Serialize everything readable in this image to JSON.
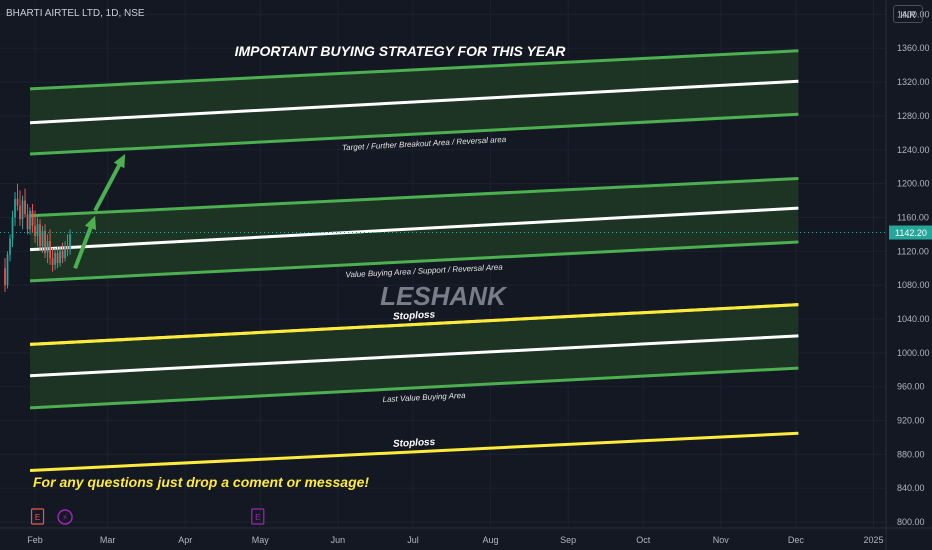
{
  "header": {
    "symbol": "BHARTI AIRTEL LTD, 1D, NSE",
    "currency": "INR"
  },
  "colors": {
    "background": "#141823",
    "band_fill": "#1f3a25",
    "green_line": "#4caf50",
    "white_line": "#ffffff",
    "yellow_line": "#ffeb3b",
    "candle_up": "#26a69a",
    "candle_down": "#ef5350",
    "price_tag": "#26a69a"
  },
  "chart_data": {
    "type": "candlestick",
    "title": "IMPORTANT BUYING STRATEGY FOR THIS YEAR",
    "watermark": "LESHANK",
    "footer_note": "For any questions just drop a coment or message!",
    "y_axis": {
      "ticks": [
        1400,
        1360,
        1320,
        1280,
        1240,
        1200,
        1160,
        1120,
        1080,
        1040,
        1000,
        960,
        920,
        880,
        840,
        800
      ],
      "labels": [
        "1400.00",
        "1360.00",
        "1320.00",
        "1280.00",
        "1240.00",
        "1200.00",
        "1160.00",
        "1120.00",
        "1080.00",
        "1040.00",
        "1000.00",
        "960.00",
        "920.00",
        "880.00",
        "840.00",
        "800.00"
      ],
      "range": [
        793,
        1417
      ]
    },
    "x_axis": {
      "labels": [
        "Feb",
        "Mar",
        "Apr",
        "May",
        "Jun",
        "Jul",
        "Aug",
        "Sep",
        "Oct",
        "Nov",
        "Dec",
        "2025"
      ],
      "day_positions": [
        0,
        29,
        60,
        90,
        121,
        151,
        182,
        213,
        243,
        274,
        304,
        335
      ],
      "range_days": [
        -14,
        340
      ]
    },
    "current_price": 1142.2,
    "current_price_label": "1142.20",
    "candles": [
      {
        "d": -12,
        "o": 1100,
        "h": 1112,
        "l": 1072,
        "c": 1080
      },
      {
        "d": -11,
        "o": 1080,
        "h": 1120,
        "l": 1076,
        "c": 1116
      },
      {
        "d": -10,
        "o": 1116,
        "h": 1140,
        "l": 1108,
        "c": 1135
      },
      {
        "d": -9,
        "o": 1135,
        "h": 1168,
        "l": 1125,
        "c": 1160
      },
      {
        "d": -8,
        "o": 1160,
        "h": 1190,
        "l": 1150,
        "c": 1182
      },
      {
        "d": -7,
        "o": 1182,
        "h": 1200,
        "l": 1168,
        "c": 1174
      },
      {
        "d": -6,
        "o": 1174,
        "h": 1192,
        "l": 1150,
        "c": 1158
      },
      {
        "d": -5,
        "o": 1158,
        "h": 1186,
        "l": 1146,
        "c": 1180
      },
      {
        "d": -4,
        "o": 1180,
        "h": 1194,
        "l": 1160,
        "c": 1164
      },
      {
        "d": -3,
        "o": 1164,
        "h": 1176,
        "l": 1140,
        "c": 1146
      },
      {
        "d": -2,
        "o": 1146,
        "h": 1172,
        "l": 1140,
        "c": 1168
      },
      {
        "d": -1,
        "o": 1168,
        "h": 1176,
        "l": 1142,
        "c": 1150
      },
      {
        "d": 0,
        "o": 1150,
        "h": 1168,
        "l": 1130,
        "c": 1138
      },
      {
        "d": 1,
        "o": 1138,
        "h": 1160,
        "l": 1126,
        "c": 1152
      },
      {
        "d": 2,
        "o": 1152,
        "h": 1158,
        "l": 1120,
        "c": 1126
      },
      {
        "d": 3,
        "o": 1126,
        "h": 1150,
        "l": 1118,
        "c": 1144
      },
      {
        "d": 4,
        "o": 1144,
        "h": 1152,
        "l": 1112,
        "c": 1118
      },
      {
        "d": 5,
        "o": 1118,
        "h": 1140,
        "l": 1106,
        "c": 1132
      },
      {
        "d": 6,
        "o": 1132,
        "h": 1146,
        "l": 1104,
        "c": 1112
      },
      {
        "d": 7,
        "o": 1112,
        "h": 1124,
        "l": 1096,
        "c": 1104
      },
      {
        "d": 8,
        "o": 1104,
        "h": 1124,
        "l": 1098,
        "c": 1118
      },
      {
        "d": 9,
        "o": 1118,
        "h": 1126,
        "l": 1100,
        "c": 1106
      },
      {
        "d": 10,
        "o": 1106,
        "h": 1126,
        "l": 1102,
        "c": 1120
      },
      {
        "d": 11,
        "o": 1120,
        "h": 1130,
        "l": 1106,
        "c": 1112
      },
      {
        "d": 12,
        "o": 1112,
        "h": 1132,
        "l": 1108,
        "c": 1126
      },
      {
        "d": 13,
        "o": 1126,
        "h": 1140,
        "l": 1114,
        "c": 1122
      },
      {
        "d": 14,
        "o": 1122,
        "h": 1146,
        "l": 1116,
        "c": 1140
      }
    ],
    "bands": [
      {
        "name": "Target / Further Breakout Area / Reversal area",
        "top": {
          "d1": -2,
          "v1": 1312,
          "d2": 305,
          "v2": 1357
        },
        "mid": {
          "d1": -2,
          "v1": 1272,
          "d2": 305,
          "v2": 1321
        },
        "bot": {
          "d1": -2,
          "v1": 1235,
          "d2": 305,
          "v2": 1282
        }
      },
      {
        "name": "Value Buying Area / Support / Reversal Area",
        "top": {
          "d1": -2,
          "v1": 1162,
          "d2": 305,
          "v2": 1206
        },
        "mid": {
          "d1": -2,
          "v1": 1122,
          "d2": 305,
          "v2": 1171
        },
        "bot": {
          "d1": -2,
          "v1": 1085,
          "d2": 305,
          "v2": 1131
        }
      },
      {
        "name": "Last Value Buying Area",
        "top": {
          "d1": -2,
          "v1": 1010,
          "d2": 305,
          "v2": 1057
        },
        "mid": {
          "d1": -2,
          "v1": 973,
          "d2": 305,
          "v2": 1020
        },
        "bot": {
          "d1": -2,
          "v1": 935,
          "d2": 305,
          "v2": 982
        }
      }
    ],
    "stoploss_lines": [
      {
        "label": "Stoploss",
        "d1": -2,
        "v1": 1010,
        "d2": 305,
        "v2": 1057
      },
      {
        "label": "Stoploss",
        "d1": -2,
        "v1": 861,
        "d2": 305,
        "v2": 905
      }
    ],
    "arrows": [
      {
        "points": [
          [
            16,
            1100
          ],
          [
            24,
            1162
          ]
        ]
      },
      {
        "points": [
          [
            24,
            1168
          ],
          [
            36,
            1235
          ]
        ]
      }
    ],
    "event_markers": [
      {
        "label": "E",
        "d": 1,
        "color": "#ef5350"
      },
      {
        "label": "⚡",
        "d": 12,
        "color": "#9c27b0"
      },
      {
        "label": "E",
        "d": 89,
        "color": "#9c27b0"
      }
    ]
  }
}
